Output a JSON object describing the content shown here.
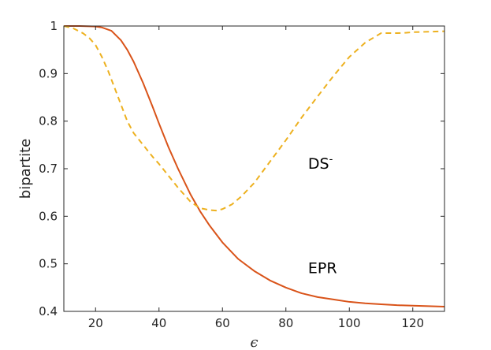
{
  "chart_data": {
    "type": "line",
    "xlabel": "ϵ",
    "ylabel": "bipartite",
    "xlim": [
      10,
      130
    ],
    "ylim": [
      0.4,
      1.0
    ],
    "xticks": [
      20,
      40,
      60,
      80,
      100,
      120
    ],
    "yticks": [
      0.4,
      0.5,
      0.6,
      0.7,
      0.8,
      0.9,
      1.0
    ],
    "ytick_labels": [
      "0.4",
      "0.5",
      "0.6",
      "0.7",
      "0.8",
      "0.9",
      "1"
    ],
    "grid": false,
    "box": true,
    "series": [
      {
        "name": "EPR",
        "color": "#d95319",
        "style": "solid",
        "x": [
          10,
          15,
          20,
          22,
          25,
          28,
          30,
          32,
          35,
          38,
          40,
          43,
          46,
          50,
          53,
          56,
          60,
          65,
          70,
          75,
          80,
          85,
          90,
          95,
          100,
          105,
          110,
          115,
          120,
          125,
          130
        ],
        "y": [
          1.0,
          1.0,
          0.999,
          0.997,
          0.99,
          0.97,
          0.95,
          0.925,
          0.88,
          0.83,
          0.795,
          0.745,
          0.7,
          0.645,
          0.61,
          0.58,
          0.545,
          0.51,
          0.485,
          0.465,
          0.45,
          0.438,
          0.43,
          0.425,
          0.42,
          0.417,
          0.415,
          0.413,
          0.412,
          0.411,
          0.41
        ]
      },
      {
        "name": "DS-",
        "color": "#edb120",
        "style": "dashed",
        "x": [
          10,
          13,
          16,
          18,
          20,
          22,
          24,
          26,
          28,
          30,
          32,
          35,
          38,
          40,
          43,
          46,
          50,
          53,
          56,
          58,
          60,
          63,
          66,
          70,
          75,
          80,
          85,
          90,
          95,
          100,
          105,
          110,
          113,
          115,
          118,
          120,
          125,
          130
        ],
        "y": [
          1.0,
          0.995,
          0.985,
          0.975,
          0.96,
          0.935,
          0.905,
          0.87,
          0.835,
          0.8,
          0.775,
          0.75,
          0.725,
          0.71,
          0.685,
          0.66,
          0.63,
          0.617,
          0.613,
          0.612,
          0.615,
          0.625,
          0.642,
          0.67,
          0.715,
          0.76,
          0.808,
          0.852,
          0.895,
          0.935,
          0.965,
          0.985,
          0.985,
          0.985,
          0.986,
          0.987,
          0.988,
          0.989
        ]
      }
    ],
    "annotations": [
      {
        "id": "ds",
        "text": "DS",
        "sup": "-",
        "x": 87,
        "y": 0.7
      },
      {
        "id": "epr",
        "text": "EPR",
        "x": 87,
        "y": 0.48
      }
    ]
  }
}
